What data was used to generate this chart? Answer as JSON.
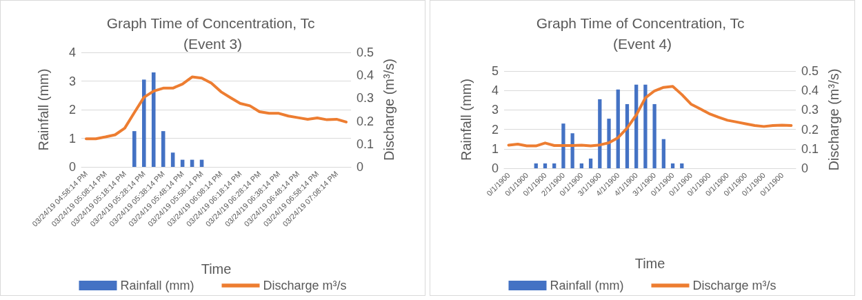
{
  "chart_data": [
    {
      "type": "bar",
      "title": "Graph Time of Concentration, Tc (Event 3)",
      "xlabel": "Time",
      "ylabel": "Rainfall (mm)",
      "y2label": "Discharge (m³/s)",
      "categories": [
        "03/24/19 04:58:14 PM",
        null,
        "03/24/19 05:08:14 PM",
        null,
        "03/24/19 05:18:14 PM",
        null,
        "03/24/19 05:28:14 PM",
        null,
        "03/24/19 05:38:14 PM",
        null,
        "03/24/19 05:48:14 PM",
        null,
        "03/24/19 05:58:14 PM",
        null,
        "03/24/19 06:08:14 PM",
        null,
        "03/24/19 06:18:14 PM",
        null,
        "03/24/19 06:28:14 PM",
        null,
        "03/24/19 06:38:14 PM",
        null,
        "03/24/19 06:48:14 PM",
        null,
        "03/24/19 06:58:14 PM",
        null,
        "03/24/19 07:08:14 PM",
        null
      ],
      "series": [
        {
          "name": "Rainfall (mm)",
          "color": "#4472c4",
          "values": [
            null,
            null,
            null,
            null,
            null,
            1.25,
            3.05,
            3.3,
            1.25,
            0.5,
            0.25,
            0.25,
            0.25,
            null,
            null,
            null,
            null,
            null,
            null,
            null,
            null,
            null,
            null,
            null,
            null,
            null,
            null,
            null
          ]
        },
        {
          "name": "Discharge m³/s",
          "type": "line",
          "axis": "y2",
          "color": "#ed7d31",
          "values": [
            0.123,
            0.123,
            0.131,
            0.14,
            0.169,
            0.237,
            0.304,
            0.331,
            0.344,
            0.344,
            0.362,
            0.393,
            0.388,
            0.366,
            0.328,
            0.302,
            0.277,
            0.267,
            0.241,
            0.234,
            0.234,
            0.222,
            0.215,
            0.208,
            0.214,
            0.206,
            0.208,
            0.196
          ]
        }
      ],
      "ylim": [
        0,
        4
      ],
      "yticks": [
        0,
        1,
        2,
        3,
        4
      ],
      "y2lim": [
        0,
        0.5
      ],
      "y2ticks": [
        0,
        0.1,
        0.2,
        0.3,
        0.4,
        0.5
      ],
      "grid": "y",
      "legend": "bottom",
      "marker": "none"
    },
    {
      "type": "bar",
      "title": "Graph Time of Concentration, Tc (Event 4)",
      "xlabel": "Time",
      "ylabel": "Rainfall (mm)",
      "y2label": "Discharge (m³/s)",
      "categories": [
        "0/1/1900",
        null,
        "0/1/1900",
        null,
        "0/1/1900",
        null,
        "2/1/1900",
        null,
        "0/1/1900",
        null,
        "3/1/1900",
        null,
        "4/1/1900",
        null,
        "4/1/1900",
        null,
        "3/1/1900",
        null,
        "0/1/1900",
        null,
        "0/1/1900",
        null,
        "0/1/1900",
        null,
        "0/1/1900",
        null,
        "0/1/1900",
        null,
        "0/1/1900",
        null,
        "0/1/1900",
        null
      ],
      "series": [
        {
          "name": "Rainfall (mm)",
          "color": "#4472c4",
          "values": [
            null,
            null,
            null,
            0.25,
            0.25,
            0.25,
            2.3,
            1.8,
            0.25,
            0.5,
            3.55,
            2.55,
            4.05,
            3.3,
            4.3,
            4.3,
            3.3,
            1.5,
            0.25,
            0.25,
            null,
            null,
            null,
            null,
            null,
            null,
            null,
            null,
            null,
            null,
            null,
            null
          ]
        },
        {
          "name": "Discharge m³/s",
          "type": "line",
          "axis": "y2",
          "color": "#ed7d31",
          "values": [
            0.119,
            0.124,
            0.115,
            0.115,
            0.13,
            0.117,
            0.117,
            0.117,
            0.119,
            0.115,
            0.12,
            0.131,
            0.157,
            0.207,
            0.274,
            0.362,
            0.398,
            0.416,
            0.421,
            0.379,
            0.33,
            0.306,
            0.281,
            0.263,
            0.247,
            0.238,
            0.229,
            0.22,
            0.215,
            0.22,
            0.222,
            0.22
          ]
        }
      ],
      "ylim": [
        0,
        5
      ],
      "yticks": [
        0,
        1,
        2,
        3,
        4,
        5
      ],
      "y2lim": [
        0,
        0.5
      ],
      "y2ticks": [
        0,
        0.1,
        0.2,
        0.3,
        0.4,
        0.5
      ],
      "grid": "y",
      "legend": "bottom",
      "marker": "none"
    }
  ]
}
